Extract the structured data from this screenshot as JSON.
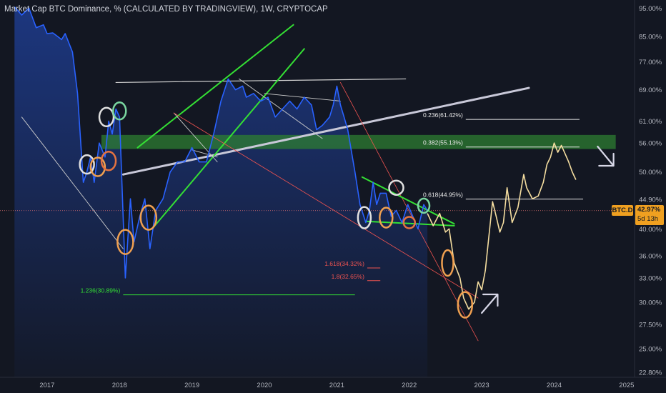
{
  "title": "Market Cap BTC Dominance, % (CALCULATED BY TRADINGVIEW), 1W, CRYPTOCAP",
  "colors": {
    "background": "#131722",
    "series": "#2962ff",
    "projection": "#f5dea0",
    "fib_white": "#e8e8e8",
    "fib_green": "#34e034",
    "fib_red": "#ef5350",
    "zone": "#2e7d32",
    "badge": "#f0a020"
  },
  "symbol": {
    "ticker": "BTC.D",
    "last_value": "42.97%",
    "countdown": "5d 13h",
    "current_line": 42.97
  },
  "fib_levels": [
    {
      "label": "0.236(61.42%)",
      "value": 61.42,
      "color": "white"
    },
    {
      "label": "0.382(55.13%)",
      "value": 55.13,
      "color": "white"
    },
    {
      "label": "0.618(44.95%)",
      "value": 44.95,
      "color": "white"
    },
    {
      "label": "1.618(34.32%)",
      "value": 34.32,
      "color": "red"
    },
    {
      "label": "1.8(32.65%)",
      "value": 32.65,
      "color": "red"
    },
    {
      "label": "1.236(30.89%)",
      "value": 30.89,
      "color": "green"
    }
  ],
  "chart_data": {
    "type": "line",
    "y_scale": "log",
    "y_ticks": [
      "95.00%",
      "85.00%",
      "77.00%",
      "69.00%",
      "61.00%",
      "56.00%",
      "50.00%",
      "44.90%",
      "40.00%",
      "36.00%",
      "33.00%",
      "30.00%",
      "27.50%",
      "25.00%",
      "22.80%"
    ],
    "x_ticks": [
      "2017",
      "2018",
      "2019",
      "2020",
      "2021",
      "2022",
      "2023",
      "2024",
      "2025"
    ],
    "series": [
      {
        "x": [
          2016.55,
          2016.65,
          2016.75,
          2016.85,
          2016.95,
          2017.0,
          2017.08,
          2017.12,
          2017.2,
          2017.25,
          2017.35,
          2017.42,
          2017.5,
          2017.55,
          2017.6,
          2017.65,
          2017.72,
          2017.8,
          2017.85,
          2017.9,
          2017.95,
          2018.0,
          2018.08,
          2018.15,
          2018.2,
          2018.28,
          2018.35,
          2018.42,
          2018.5,
          2018.6,
          2018.7,
          2018.8,
          2018.9,
          2019.0,
          2019.1,
          2019.2,
          2019.3,
          2019.4,
          2019.5,
          2019.6,
          2019.7,
          2019.75,
          2019.85,
          2019.95,
          2020.05,
          2020.15,
          2020.25,
          2020.35,
          2020.45,
          2020.55,
          2020.65,
          2020.72,
          2020.8,
          2020.9,
          2020.95,
          2021.0,
          2021.05,
          2021.1,
          2021.15,
          2021.25,
          2021.32,
          2021.4,
          2021.45,
          2021.5,
          2021.55,
          2021.6,
          2021.68,
          2021.75,
          2021.82,
          2021.9,
          2021.98,
          2022.05,
          2022.12,
          2022.2,
          2022.25
        ],
        "y": [
          95.5,
          92.5,
          95,
          88,
          89,
          86,
          86.2,
          85.5,
          84,
          86,
          80,
          68,
          48,
          50,
          53,
          48,
          56,
          53,
          61,
          58,
          64,
          62,
          33,
          45,
          38,
          42,
          45,
          37,
          43,
          45,
          50,
          52,
          52,
          55,
          52,
          52,
          58,
          66,
          72,
          69,
          70,
          67,
          68,
          66,
          67,
          62,
          64,
          66,
          64,
          67,
          65,
          59,
          60,
          62,
          65,
          70,
          65,
          62,
          59,
          50,
          44,
          41,
          43,
          48,
          44,
          46,
          46,
          42,
          43,
          41,
          44,
          42,
          40,
          44,
          43
        ]
      }
    ],
    "projection": {
      "x": [
        2022.25,
        2022.33,
        2022.42,
        2022.5,
        2022.55,
        2022.62,
        2022.7,
        2022.75,
        2022.82,
        2022.9,
        2022.95,
        2023.0,
        2023.05,
        2023.1,
        2023.15,
        2023.2,
        2023.25,
        2023.3,
        2023.35,
        2023.42,
        2023.5,
        2023.58,
        2023.62,
        2023.7,
        2023.78,
        2023.85,
        2023.9,
        2023.95,
        2024.0,
        2024.05,
        2024.1,
        2024.2,
        2024.25,
        2024.3
      ],
      "y": [
        42.5,
        40.5,
        42.5,
        39.5,
        40,
        35,
        33,
        30.5,
        29.2,
        30,
        32.5,
        31.5,
        34,
        39,
        44.5,
        42,
        39.5,
        41,
        47,
        41,
        43.5,
        49.5,
        47,
        45,
        45.5,
        48,
        51.5,
        53,
        56,
        54,
        55.5,
        52,
        50,
        48.5
      ]
    },
    "y_range": [
      22.8,
      97
    ],
    "x_range": [
      2016.35,
      2025.1
    ],
    "grid": false,
    "legend": "none"
  }
}
